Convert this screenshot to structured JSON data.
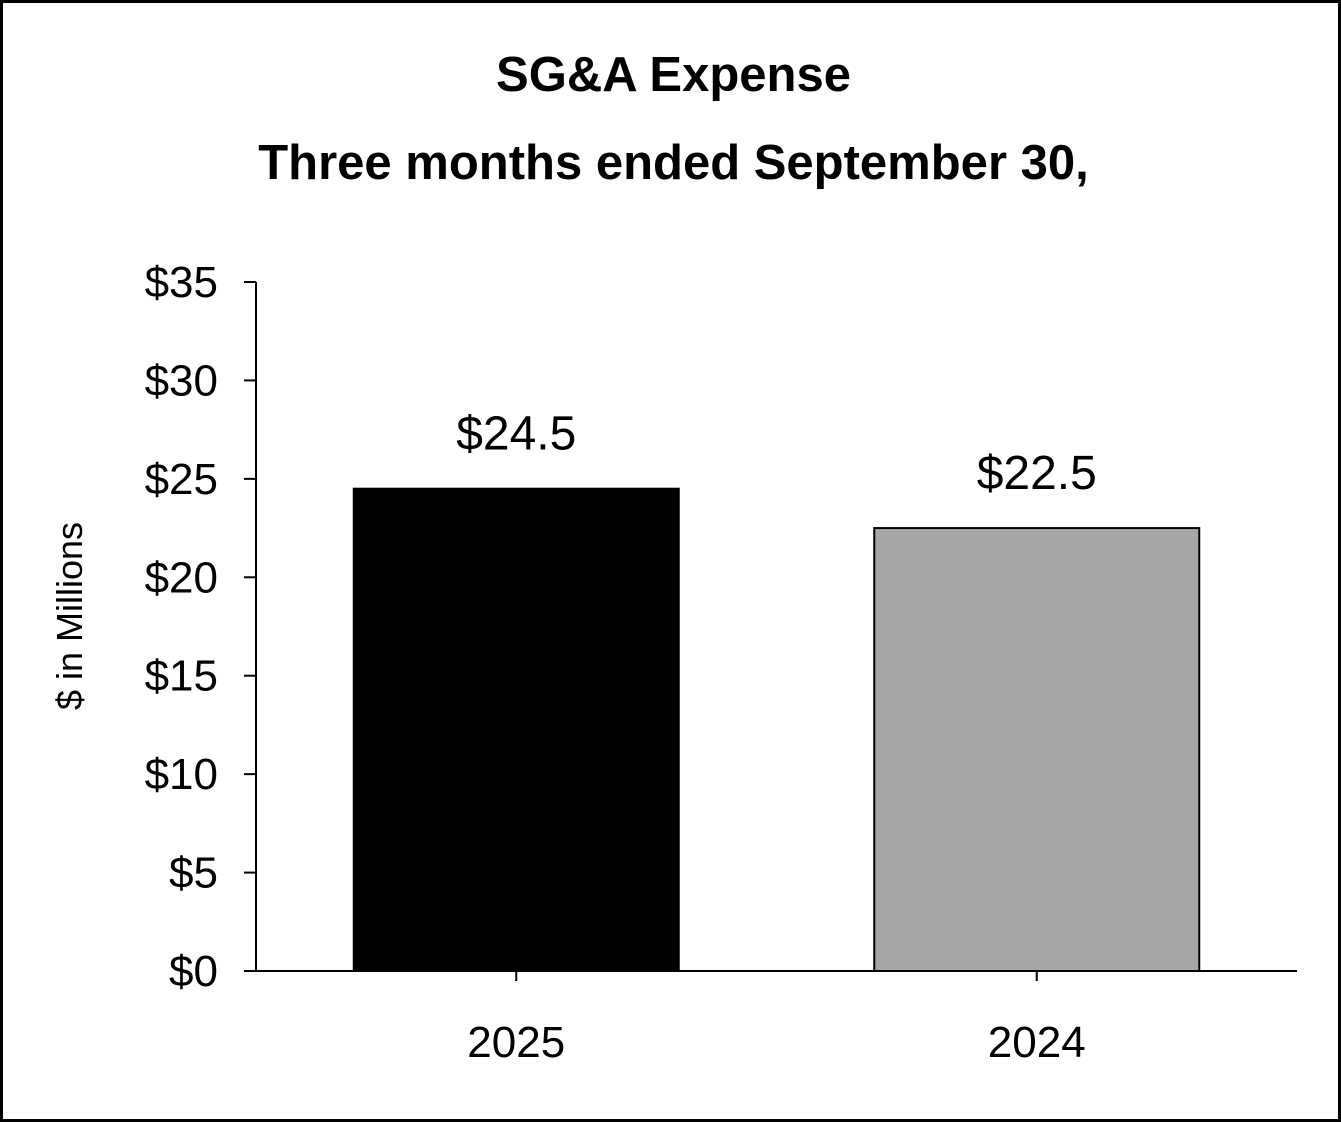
{
  "chart_data": {
    "type": "bar",
    "title": "SG&A Expense",
    "subtitle": "Three months ended September 30,",
    "xlabel": "",
    "ylabel": "$ in Millions",
    "categories": [
      "2025",
      "2024"
    ],
    "values": [
      24.5,
      22.5
    ],
    "data_labels": [
      "$24.5",
      "$22.5"
    ],
    "bar_colors": [
      "#000000",
      "#a6a6a6"
    ],
    "ylim": [
      0,
      35
    ],
    "yticks": [
      0,
      5,
      10,
      15,
      20,
      25,
      30,
      35
    ],
    "ytick_labels": [
      "$0",
      "$5",
      "$10",
      "$15",
      "$20",
      "$25",
      "$30",
      "$35"
    ],
    "grid": false,
    "legend": "none"
  }
}
